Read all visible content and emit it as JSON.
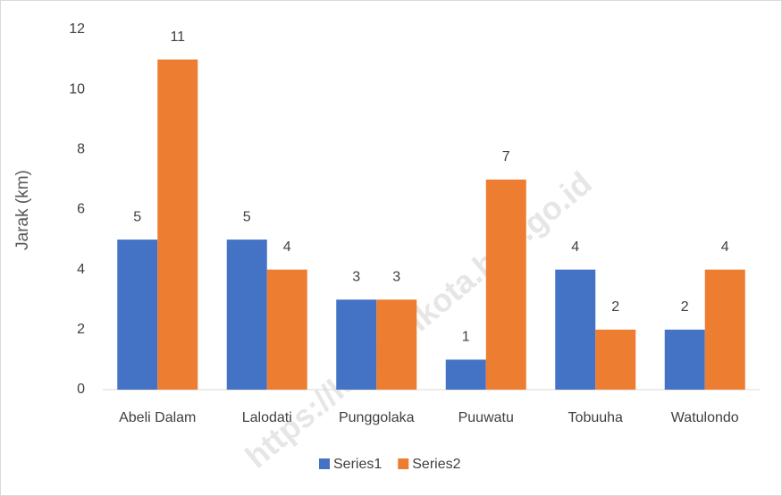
{
  "chart_data": {
    "type": "bar",
    "y_label": "Jarak (km)",
    "watermark": "https://kendarikota.bps.go.id",
    "categories": [
      "Abeli Dalam",
      "Lalodati",
      "Punggolaka",
      "Puuwatu",
      "Tobuuha",
      "Watulondo"
    ],
    "series": [
      {
        "name": "Series1",
        "color": "#4472c4",
        "values": [
          5,
          5,
          3,
          1,
          4,
          2
        ]
      },
      {
        "name": "Series2",
        "color": "#ed7d31",
        "values": [
          11,
          4,
          3,
          7,
          2,
          4
        ]
      }
    ],
    "ylim": [
      0,
      12
    ],
    "yticks": [
      0,
      2,
      4,
      6,
      8,
      10,
      12
    ],
    "grid": false,
    "legend": "bottom"
  }
}
